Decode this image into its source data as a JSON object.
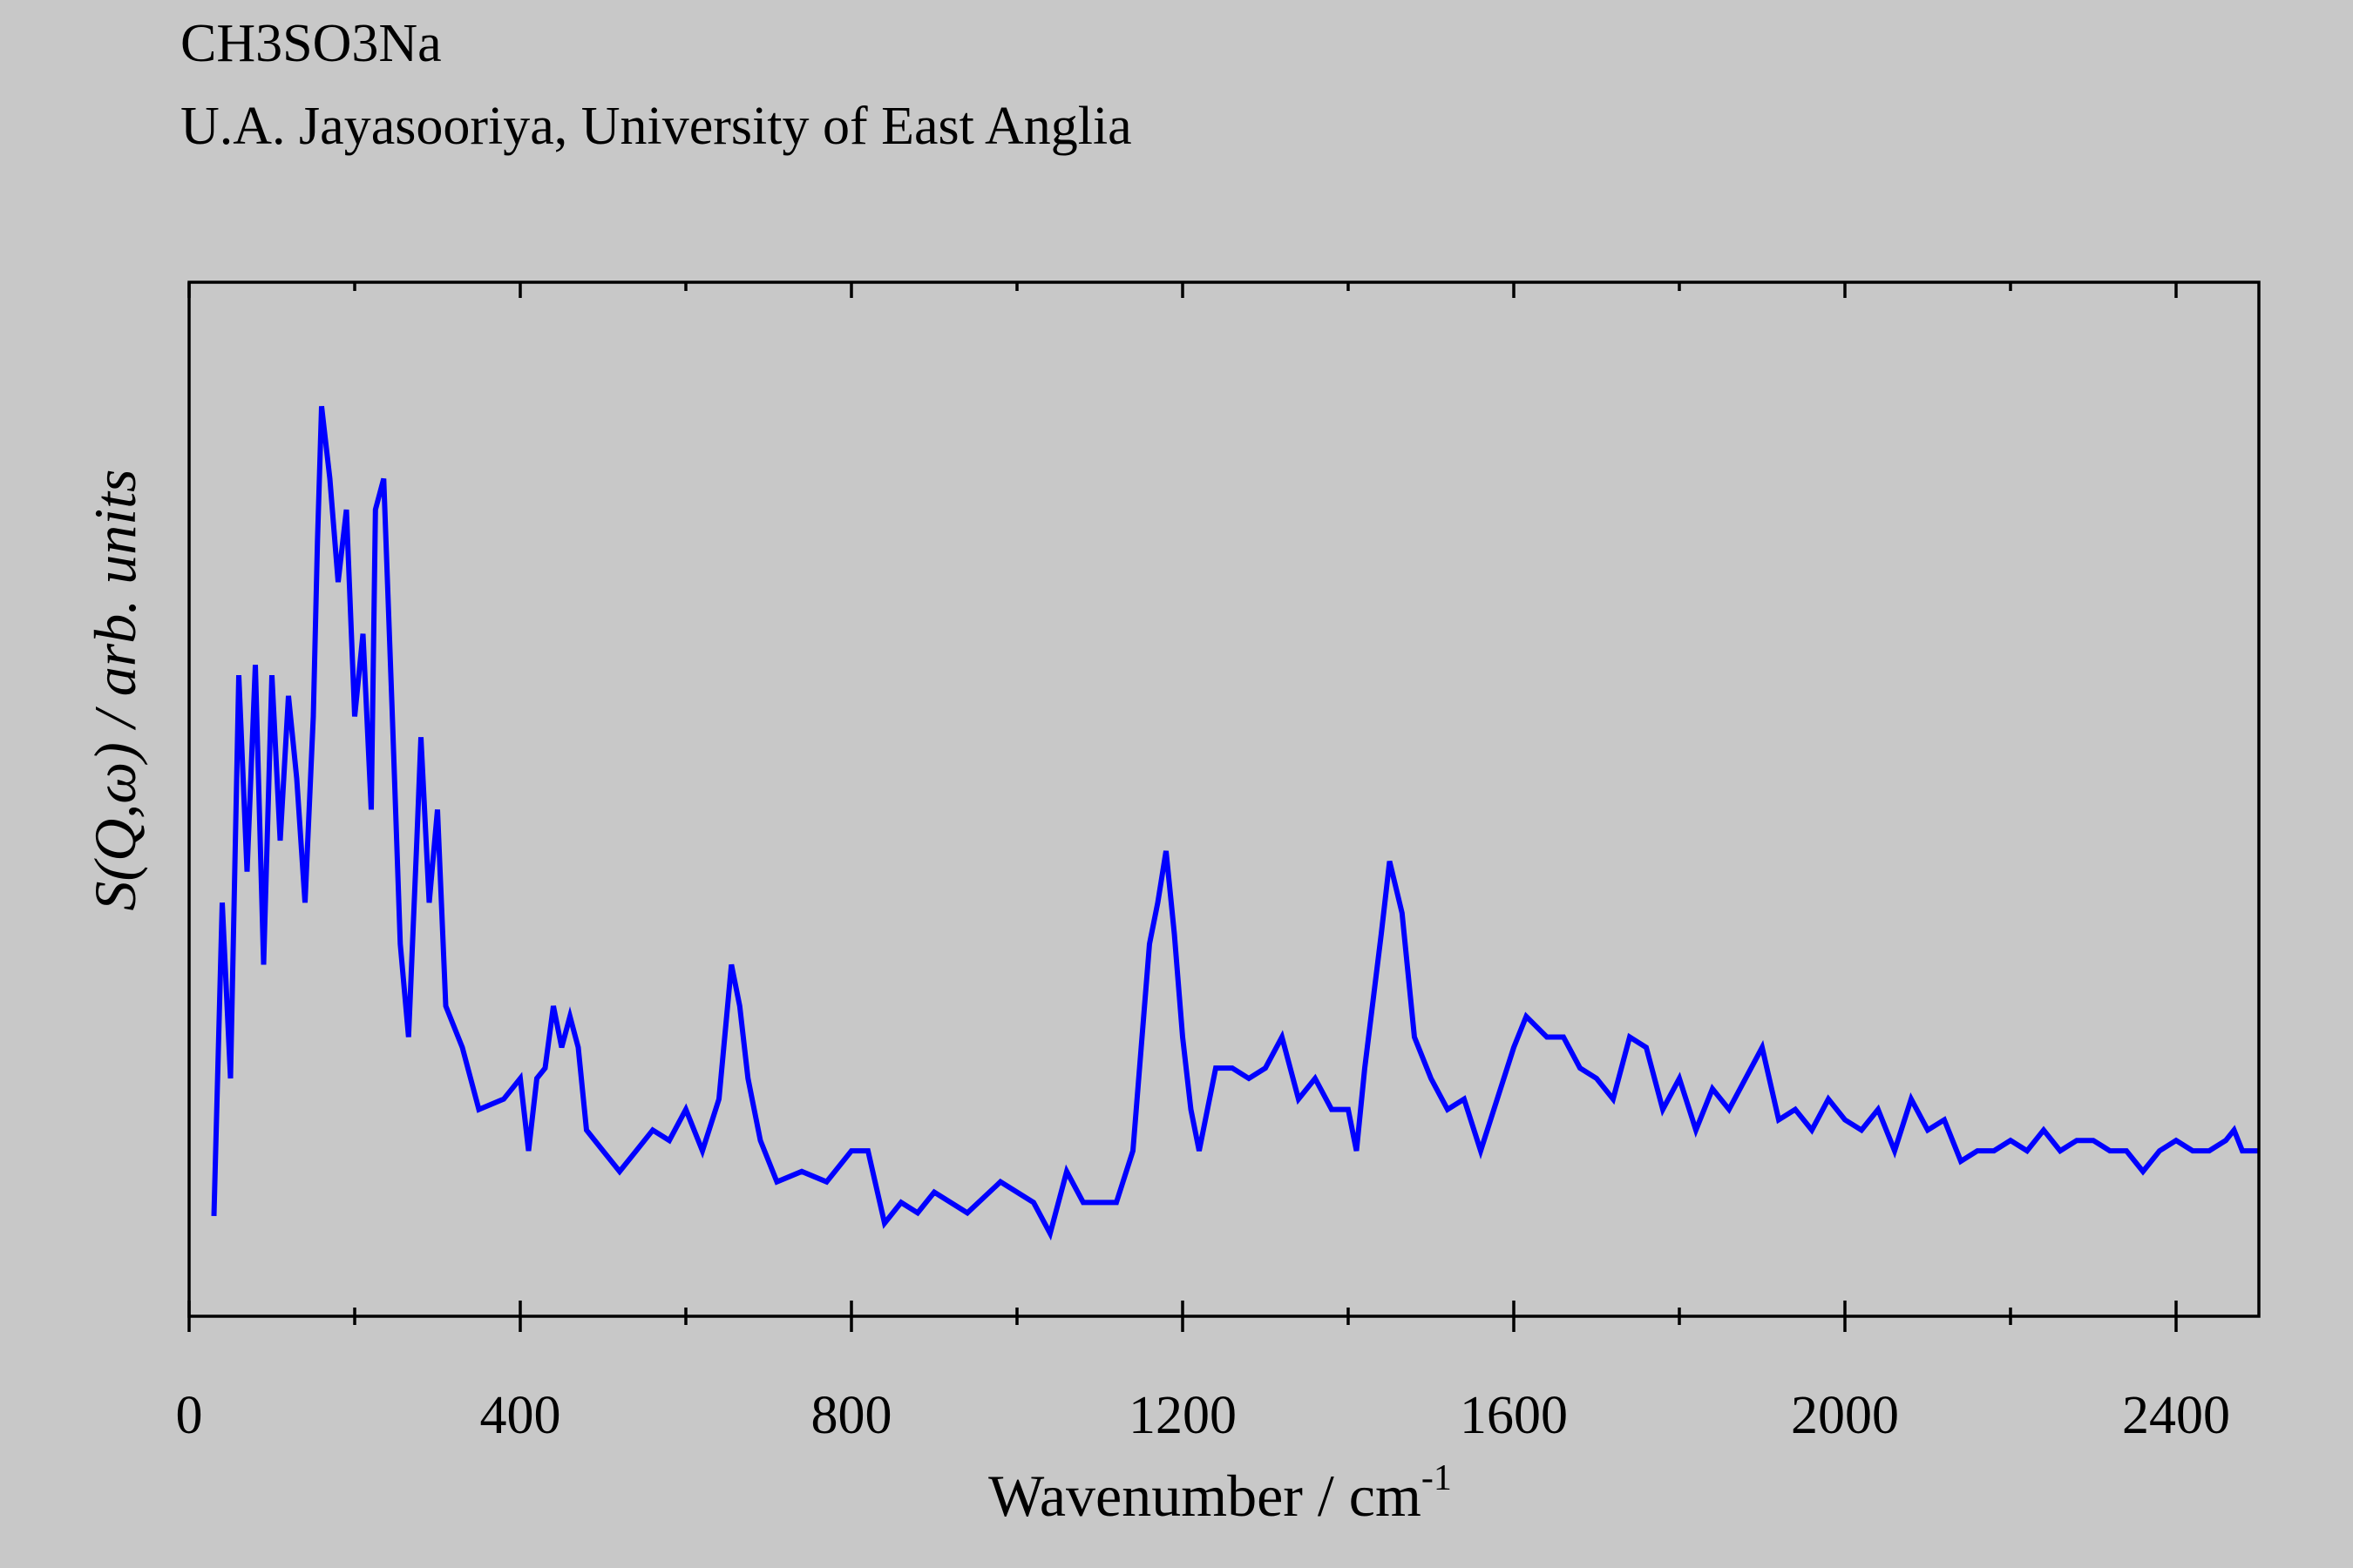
{
  "chart_data": {
    "type": "line",
    "title": "CH3SO3Na",
    "subtitle": "U.A. Jayasooriya, University of East Anglia",
    "xlabel": "Wavenumber / cm",
    "xlabel_sup": "-1",
    "ylabel": "S(Q,ω) / arb. units",
    "xlim": [
      0,
      2500
    ],
    "ylim": [
      0,
      100
    ],
    "xticks": [
      0,
      400,
      800,
      1200,
      1600,
      2000,
      2400
    ],
    "x_minor_ticks": [
      200,
      600,
      1000,
      1400,
      1800,
      2200
    ],
    "series": [
      {
        "name": "CH3SO3Na",
        "color": "#0000ff",
        "x": [
          30,
          40,
          50,
          60,
          70,
          80,
          90,
          100,
          110,
          120,
          130,
          140,
          150,
          155,
          160,
          170,
          180,
          190,
          200,
          210,
          220,
          225,
          235,
          245,
          255,
          265,
          275,
          280,
          290,
          300,
          310,
          330,
          350,
          380,
          400,
          410,
          420,
          430,
          440,
          450,
          460,
          470,
          480,
          500,
          520,
          540,
          560,
          580,
          600,
          620,
          640,
          655,
          665,
          675,
          690,
          710,
          740,
          770,
          800,
          820,
          840,
          860,
          880,
          900,
          940,
          980,
          1020,
          1040,
          1060,
          1080,
          1120,
          1140,
          1160,
          1170,
          1180,
          1190,
          1200,
          1210,
          1220,
          1240,
          1260,
          1280,
          1300,
          1320,
          1340,
          1360,
          1380,
          1400,
          1410,
          1420,
          1440,
          1450,
          1465,
          1480,
          1500,
          1520,
          1540,
          1560,
          1580,
          1600,
          1615,
          1640,
          1660,
          1680,
          1700,
          1720,
          1740,
          1760,
          1780,
          1800,
          1820,
          1840,
          1860,
          1880,
          1900,
          1920,
          1940,
          1960,
          1980,
          2000,
          2020,
          2040,
          2060,
          2080,
          2100,
          2120,
          2140,
          2160,
          2180,
          2200,
          2220,
          2240,
          2260,
          2280,
          2300,
          2320,
          2340,
          2360,
          2380,
          2400,
          2420,
          2440,
          2460,
          2470,
          2480,
          2500
        ],
        "values": [
          9.7,
          40,
          23,
          62,
          43,
          63,
          34,
          62,
          46,
          60,
          52,
          40,
          58,
          75,
          88,
          81,
          71,
          78,
          58,
          66,
          49,
          78,
          81,
          59,
          36,
          27,
          46,
          56,
          40,
          49,
          30,
          26,
          20,
          21,
          23,
          16,
          23,
          24,
          30,
          26,
          29,
          26,
          18,
          16,
          14,
          16,
          18,
          17,
          20,
          16,
          21,
          34,
          30,
          23,
          17,
          13,
          14,
          13,
          16,
          16,
          9,
          11,
          10,
          12,
          10,
          13,
          11,
          8,
          14,
          11,
          11,
          16,
          36,
          40,
          45,
          37,
          27,
          20,
          16,
          24,
          24,
          23,
          24,
          27,
          21,
          23,
          20,
          20,
          16,
          24,
          37,
          44,
          39,
          27,
          23,
          20,
          21,
          16,
          21,
          26,
          29,
          27,
          27,
          24,
          23,
          21,
          27,
          26,
          20,
          23,
          18,
          22,
          20,
          23,
          26,
          19,
          20,
          18,
          21,
          19,
          18,
          20,
          16,
          21,
          18,
          19,
          15,
          16,
          16,
          17,
          16,
          18,
          16,
          17,
          17,
          16,
          16,
          14,
          16,
          17,
          16,
          16,
          17,
          18,
          16,
          16
        ]
      }
    ]
  }
}
